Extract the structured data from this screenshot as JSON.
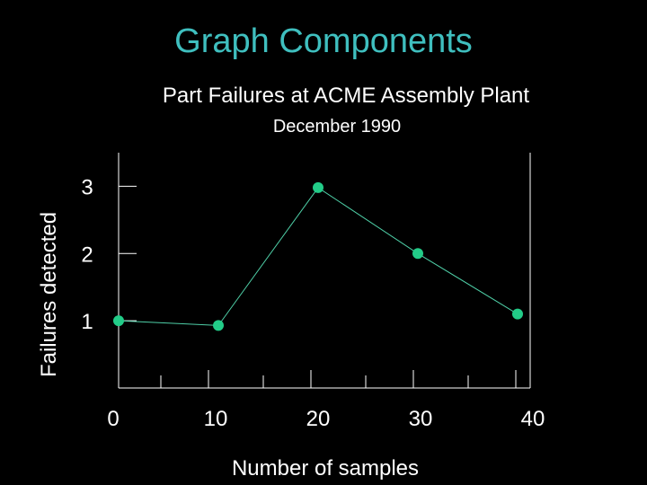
{
  "slide": {
    "title": "Graph Components"
  },
  "colors": {
    "background": "#000000",
    "title": "#3fbfbf",
    "text": "#ffffff",
    "axis": "#ffffff",
    "series_line": "#4fd0a8",
    "series_marker": "#22cc88"
  },
  "chart_data": {
    "type": "line",
    "title": "Part Failures at ACME Assembly Plant",
    "subtitle": "December 1990",
    "xlabel": "Number of samples",
    "ylabel": "Failures detected",
    "xlim": [
      0,
      40
    ],
    "ylim": [
      0,
      3.5
    ],
    "x_ticks": [
      "0",
      "10",
      "20",
      "30",
      "40"
    ],
    "y_ticks": [
      "1",
      "2",
      "3"
    ],
    "grid": false,
    "series": [
      {
        "x": [
          0,
          10,
          20,
          30,
          40
        ],
        "y": [
          1.0,
          0.93,
          2.98,
          2.0,
          1.1
        ]
      }
    ]
  }
}
